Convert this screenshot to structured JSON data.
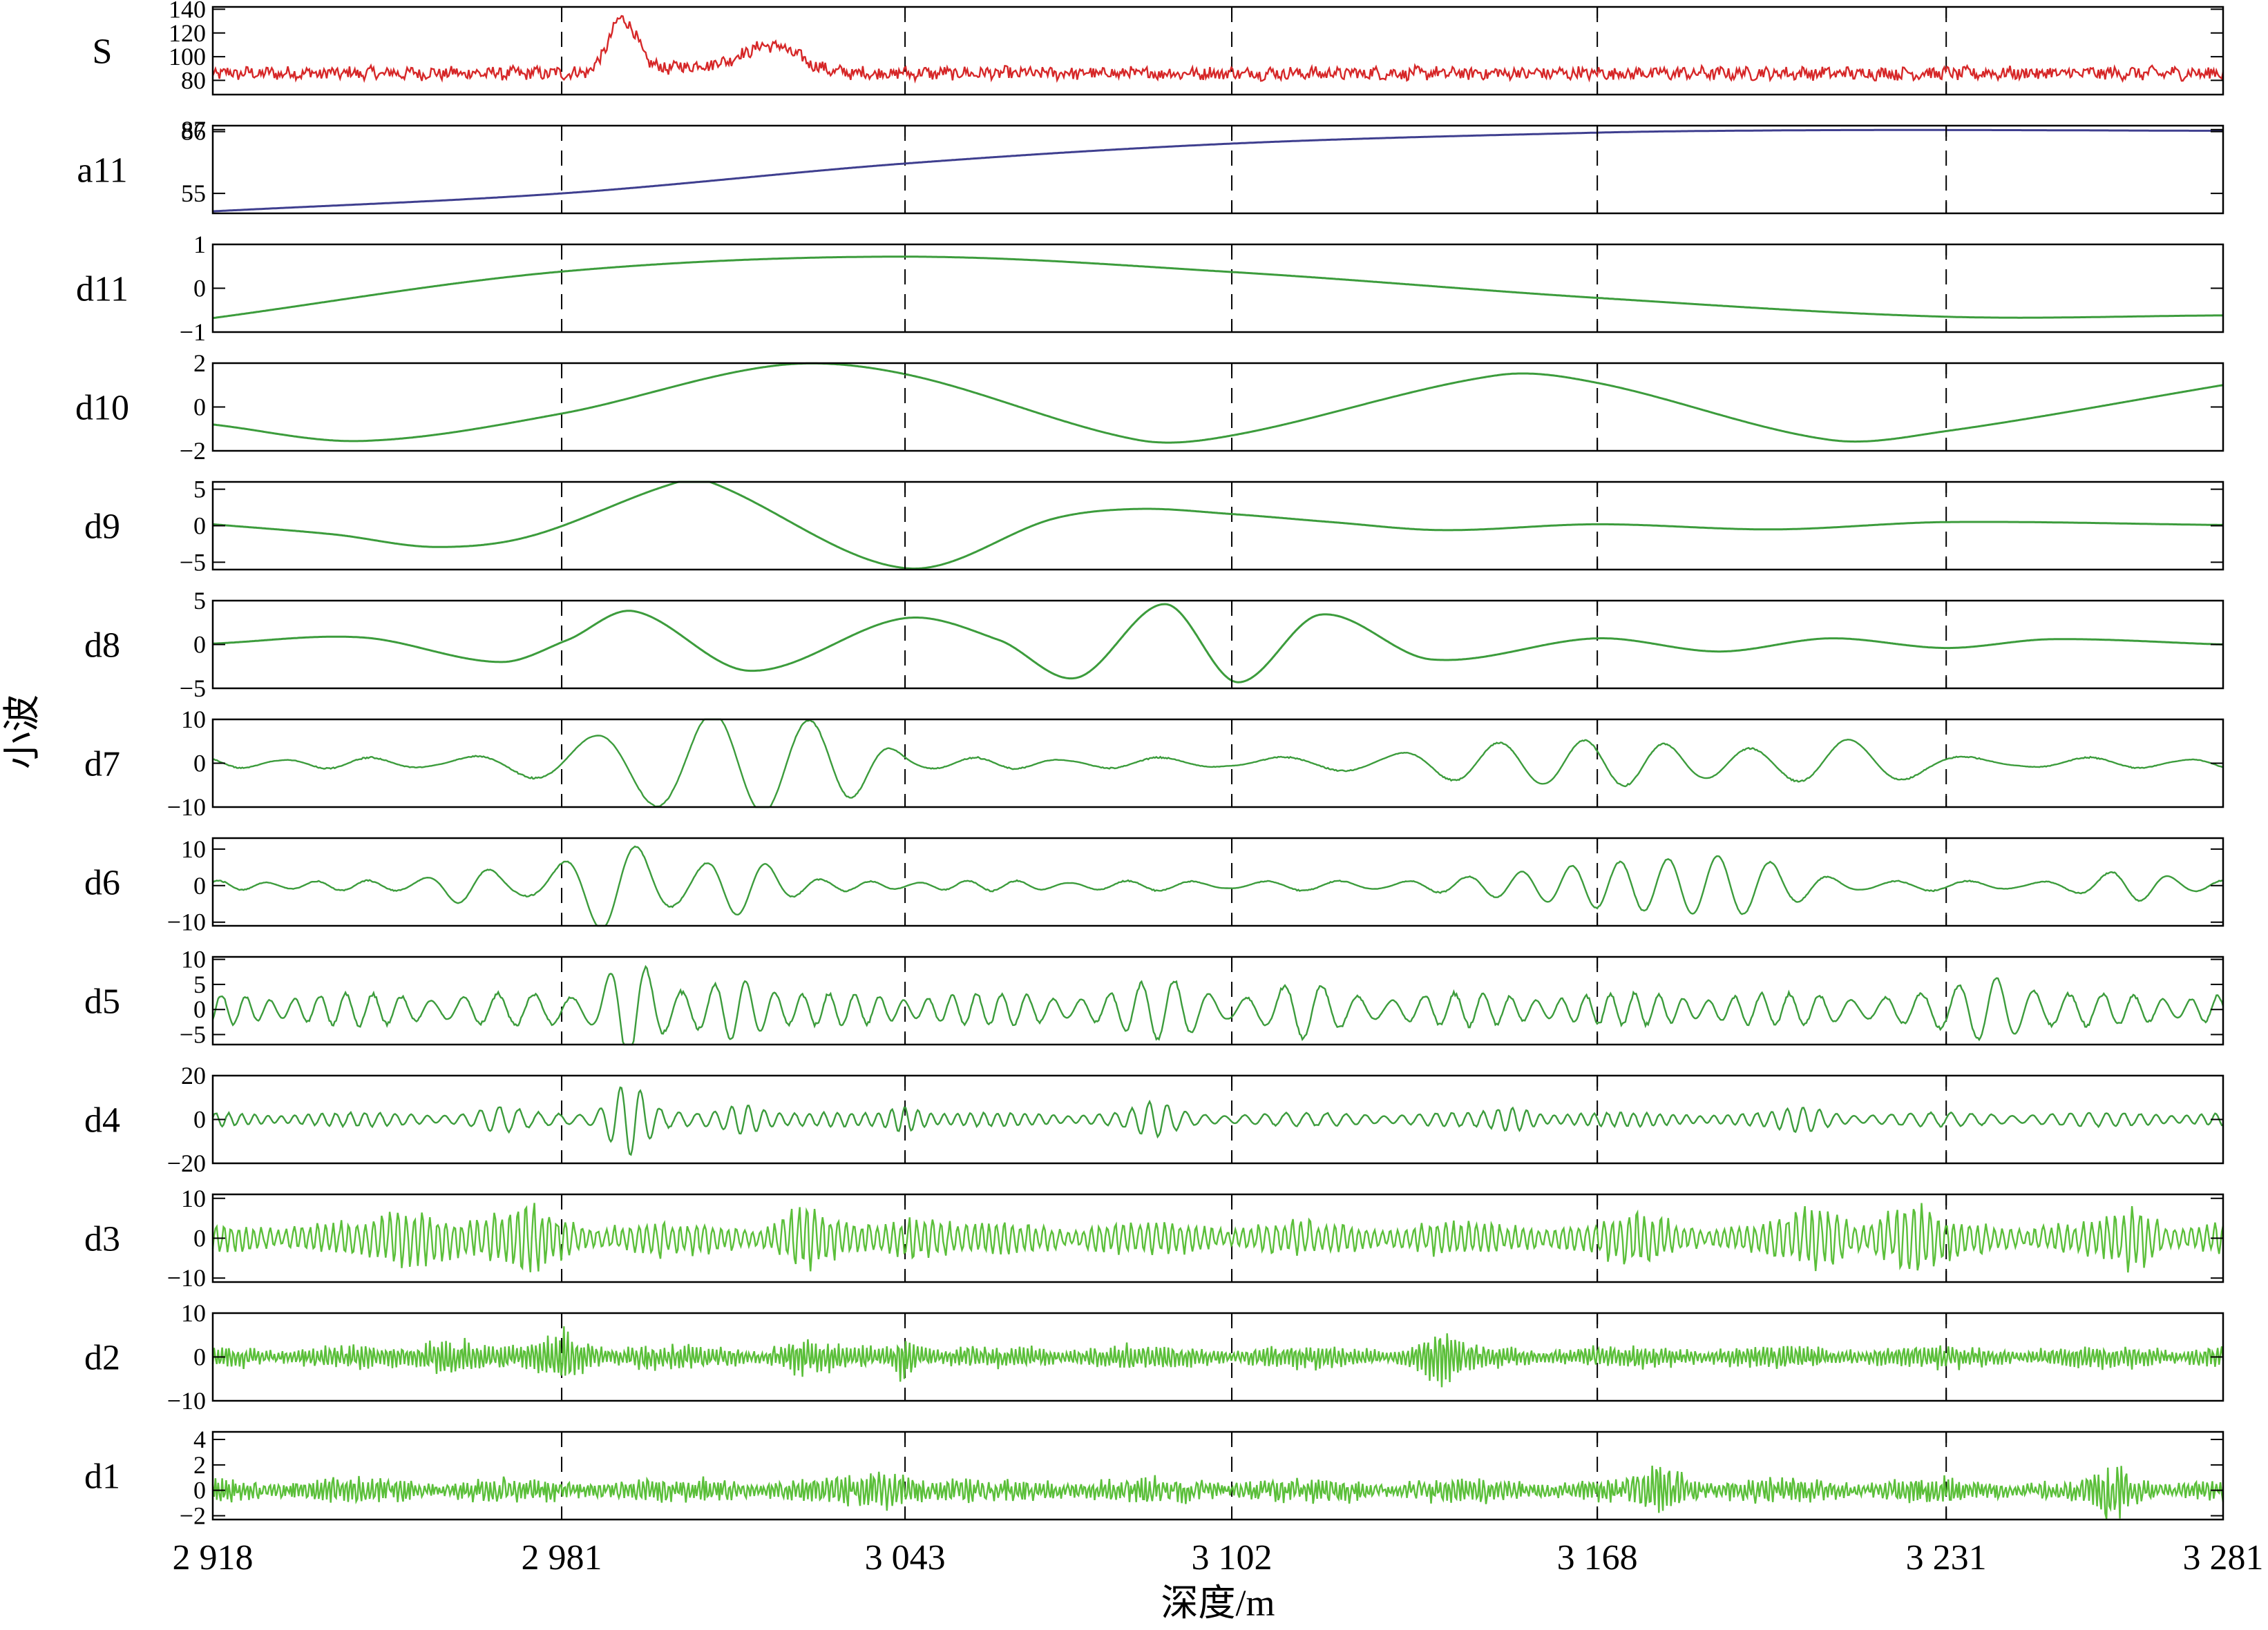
{
  "figure": {
    "ylabel": "小波",
    "xlabel": "深度/m"
  },
  "chart_data": {
    "type": "line",
    "x_range": [
      2918,
      3281
    ],
    "x_ticks": [
      2918,
      2981,
      3043,
      3102,
      3168,
      3231,
      3281
    ],
    "x_tick_labels": [
      "2 918",
      "2 981",
      "3 043",
      "3 102",
      "3 168",
      "3 231",
      "3 281"
    ],
    "grid": "dashed vertical lines at interior x ticks",
    "series": [
      {
        "name": "S",
        "color": "#d62728",
        "yticks": [
          80,
          100,
          120,
          140
        ],
        "ytick_labels": [
          "80",
          "100",
          "120",
          "140"
        ],
        "ylim": [
          68,
          142
        ],
        "kind": "noise",
        "baseline": 86,
        "noise_amp": 5,
        "bursts": [
          [
            2992,
            2.5,
            45
          ],
          [
            3019,
            5,
            22
          ],
          [
            3006,
            8,
            6
          ]
        ]
      },
      {
        "name": "a11",
        "color": "#3f3f8f",
        "yticks": [
          55,
          86,
          87
        ],
        "ytick_labels": [
          "55",
          "86",
          "87"
        ],
        "ylim": [
          45,
          89
        ],
        "kind": "trend",
        "points": [
          [
            2918,
            46
          ],
          [
            2981,
            55
          ],
          [
            3043,
            70
          ],
          [
            3102,
            80
          ],
          [
            3168,
            85.5
          ],
          [
            3200,
            86.6
          ],
          [
            3231,
            86.8
          ],
          [
            3281,
            86.4
          ]
        ]
      },
      {
        "name": "d11",
        "color": "#3c9c3c",
        "yticks": [
          -1,
          0,
          1
        ],
        "ytick_labels": [
          "−1",
          "0",
          "1"
        ],
        "ylim": [
          -1,
          1
        ],
        "kind": "smooth",
        "points": [
          [
            2918,
            -0.68
          ],
          [
            2981,
            0.38
          ],
          [
            3043,
            0.72
          ],
          [
            3102,
            0.37
          ],
          [
            3168,
            -0.22
          ],
          [
            3231,
            -0.65
          ],
          [
            3281,
            -0.62
          ]
        ]
      },
      {
        "name": "d10",
        "color": "#3c9c3c",
        "yticks": [
          -2,
          0,
          2
        ],
        "ytick_labels": [
          "−2",
          "0",
          "2"
        ],
        "ylim": [
          -2,
          2
        ],
        "kind": "smooth",
        "points": [
          [
            2918,
            -0.8
          ],
          [
            2945,
            -1.55
          ],
          [
            2981,
            -0.3
          ],
          [
            3020,
            1.9
          ],
          [
            3043,
            1.5
          ],
          [
            3085,
            -1.5
          ],
          [
            3102,
            -1.3
          ],
          [
            3150,
            1.45
          ],
          [
            3168,
            1.1
          ],
          [
            3210,
            -1.5
          ],
          [
            3231,
            -1.1
          ],
          [
            3281,
            1.0
          ]
        ]
      },
      {
        "name": "d9",
        "color": "#3c9c3c",
        "yticks": [
          -5,
          0,
          5
        ],
        "ytick_labels": [
          "−5",
          "0",
          "5"
        ],
        "ylim": [
          -6,
          6
        ],
        "kind": "smooth",
        "points": [
          [
            2918,
            0.2
          ],
          [
            2940,
            -1.2
          ],
          [
            2958,
            -2.9
          ],
          [
            2975,
            -1.5
          ],
          [
            3000,
            5.5
          ],
          [
            3007,
            6.2
          ],
          [
            3043,
            -5.8
          ],
          [
            3070,
            1.0
          ],
          [
            3085,
            2.3
          ],
          [
            3102,
            1.6
          ],
          [
            3120,
            0.5
          ],
          [
            3140,
            -0.6
          ],
          [
            3168,
            0.2
          ],
          [
            3200,
            -0.5
          ],
          [
            3231,
            0.5
          ],
          [
            3281,
            0.1
          ]
        ]
      },
      {
        "name": "d8",
        "color": "#3c9c3c",
        "yticks": [
          -5,
          0,
          5
        ],
        "ytick_labels": [
          "−5",
          "0",
          "5"
        ],
        "ylim": [
          -5,
          5
        ],
        "kind": "smooth",
        "points": [
          [
            2918,
            0.1
          ],
          [
            2945,
            0.8
          ],
          [
            2970,
            -2.0
          ],
          [
            2982,
            0.5
          ],
          [
            2994,
            3.8
          ],
          [
            3015,
            -3.0
          ],
          [
            3043,
            3.0
          ],
          [
            3060,
            0.5
          ],
          [
            3074,
            -3.8
          ],
          [
            3090,
            4.6
          ],
          [
            3103,
            -4.3
          ],
          [
            3118,
            3.4
          ],
          [
            3138,
            -1.7
          ],
          [
            3168,
            0.7
          ],
          [
            3190,
            -0.8
          ],
          [
            3210,
            0.7
          ],
          [
            3231,
            -0.4
          ],
          [
            3250,
            0.6
          ],
          [
            3281,
            0.0
          ]
        ]
      },
      {
        "name": "d7",
        "color": "#3c9c3c",
        "yticks": [
          -10,
          0,
          10
        ],
        "ytick_labels": [
          "−10",
          "0",
          "10"
        ],
        "ylim": [
          -10,
          10
        ],
        "kind": "osc",
        "period": 16,
        "amp": 1.3,
        "bursts": [
          [
            2998,
            7.5,
            14
          ],
          [
            3018,
            7.5,
            10
          ],
          [
            3033,
            4.0,
            6
          ],
          [
            3155,
            3.0,
            18
          ],
          [
            3215,
            4.0,
            8
          ],
          [
            3182,
            2.2,
            20
          ]
        ]
      },
      {
        "name": "d6",
        "color": "#3c9c3c",
        "yticks": [
          -10,
          0,
          10
        ],
        "ytick_labels": [
          "−10",
          "0",
          "10"
        ],
        "ylim": [
          -11,
          13
        ],
        "kind": "osc",
        "period": 9.5,
        "amp": 1.4,
        "bursts": [
          [
            2990,
            11.5,
            7
          ],
          [
            2964,
            4.0,
            5
          ],
          [
            3013,
            7.0,
            6
          ],
          [
            3168,
            4.5,
            14
          ],
          [
            3192,
            6.0,
            10
          ],
          [
            3265,
            3.0,
            6
          ]
        ]
      },
      {
        "name": "d5",
        "color": "#3c9c3c",
        "yticks": [
          -5,
          0,
          5,
          10
        ],
        "ytick_labels": [
          "−5",
          "0",
          "5",
          "10"
        ],
        "ylim": [
          -7,
          10.5
        ],
        "kind": "osc",
        "period": 4.8,
        "amp": 3.2,
        "bursts": [
          [
            2993,
            8.0,
            3.5
          ],
          [
            3013,
            4.0,
            4
          ],
          [
            3090,
            3.0,
            5
          ],
          [
            3240,
            4.0,
            5
          ],
          [
            3115,
            2.5,
            4
          ]
        ]
      },
      {
        "name": "d4",
        "color": "#3c9c3c",
        "yticks": [
          -20,
          0,
          20
        ],
        "ytick_labels": [
          "−20",
          "0",
          "20"
        ],
        "ylim": [
          -20,
          20
        ],
        "kind": "osc",
        "period": 2.6,
        "amp": 3.0,
        "bursts": [
          [
            2993,
            14.0,
            3
          ],
          [
            3014,
            5.0,
            3
          ],
          [
            3043,
            4.0,
            2.5
          ],
          [
            3088,
            5.0,
            3
          ],
          [
            2970,
            3.0,
            3
          ],
          [
            3153,
            3.0,
            3
          ],
          [
            3205,
            3.0,
            3
          ]
        ]
      },
      {
        "name": "d3",
        "color": "#5bbf3a",
        "yticks": [
          -10,
          0,
          10
        ],
        "ytick_labels": [
          "−10",
          "0",
          "10"
        ],
        "ylim": [
          -11,
          11
        ],
        "kind": "noise_osc",
        "period": 1.45,
        "amp": 4.0,
        "bursts": [
          [
            2955,
            4.0,
            5
          ],
          [
            2975,
            4.0,
            5
          ],
          [
            3025,
            5.0,
            3
          ],
          [
            3045,
            3.0,
            3
          ],
          [
            3175,
            3.0,
            4
          ],
          [
            3208,
            4.0,
            4
          ],
          [
            3225,
            5.0,
            4
          ],
          [
            3265,
            4.0,
            3
          ]
        ]
      },
      {
        "name": "d2",
        "color": "#5bbf3a",
        "yticks": [
          -10,
          0,
          10
        ],
        "ytick_labels": [
          "−10",
          "0",
          "10"
        ],
        "ylim": [
          -10,
          10
        ],
        "kind": "noise_osc",
        "period": 0.72,
        "amp": 2.6,
        "bursts": [
          [
            2982,
            4.5,
            3
          ],
          [
            3043,
            4.5,
            1.5
          ],
          [
            3140,
            3.5,
            3
          ],
          [
            2960,
            2.5,
            4
          ],
          [
            3025,
            2.5,
            3
          ]
        ]
      },
      {
        "name": "d1",
        "color": "#5bbf3a",
        "yticks": [
          -2,
          0,
          2,
          4
        ],
        "ytick_labels": [
          "−2",
          "0",
          "2",
          "4"
        ],
        "ylim": [
          -2.3,
          4.6
        ],
        "kind": "noise_osc",
        "period": 0.36,
        "amp": 0.95,
        "bursts": [
          [
            3180,
            1.2,
            3
          ],
          [
            3261,
            1.4,
            2
          ],
          [
            3040,
            0.8,
            4
          ]
        ]
      }
    ]
  }
}
